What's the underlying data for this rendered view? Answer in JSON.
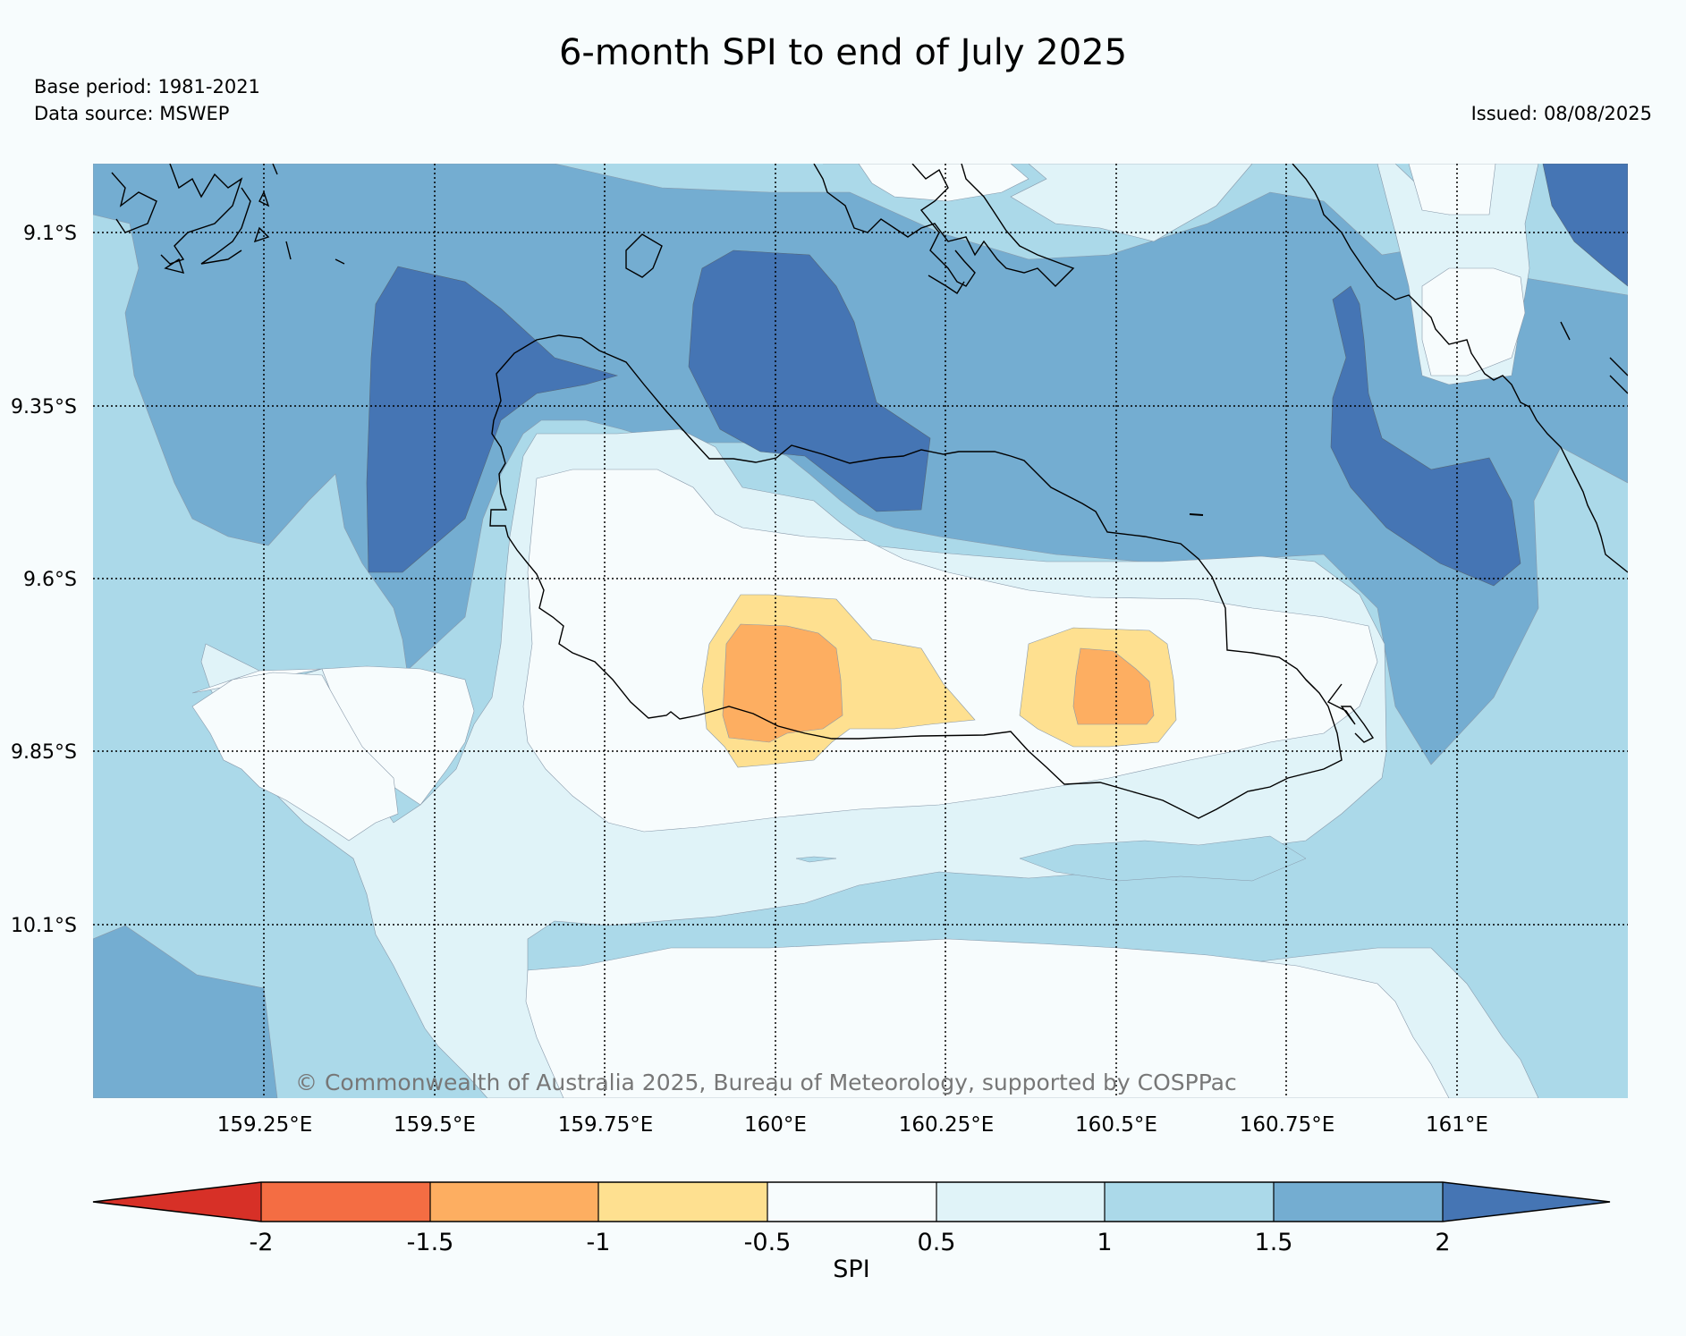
{
  "header": {
    "title": "6-month SPI to end of July 2025",
    "base_period": "Base period: 1981-2021",
    "data_source": "Data source: MSWEP",
    "issued": "Issued: 08/08/2025"
  },
  "map": {
    "lat_labels": [
      "9.1°S",
      "9.35°S",
      "9.6°S",
      "9.85°S",
      "10.1°S"
    ],
    "lon_labels": [
      "159.25°E",
      "159.5°E",
      "159.75°E",
      "160°E",
      "160.25°E",
      "160.5°E",
      "160.75°E",
      "161°E"
    ],
    "copyright": "© Commonwealth of Australia 2025, Bureau of Meteorology, supported by COSPPac"
  },
  "colorbar": {
    "label": "SPI",
    "ticks": [
      "-2",
      "-1.5",
      "-1",
      "-0.5",
      "0.5",
      "1",
      "1.5",
      "2"
    ],
    "colors": [
      "#d73027",
      "#f46d43",
      "#fdae61",
      "#fee090",
      "#f7fcfd",
      "#e0f3f8",
      "#abd9e9",
      "#74add1",
      "#4575b4"
    ]
  }
}
